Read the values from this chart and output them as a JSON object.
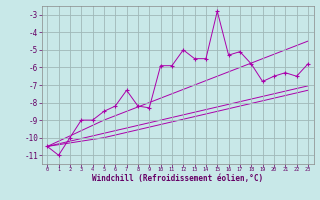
{
  "xlabel": "Windchill (Refroidissement éolien,°C)",
  "x": [
    0,
    1,
    2,
    3,
    4,
    5,
    6,
    7,
    8,
    9,
    10,
    11,
    12,
    13,
    14,
    15,
    16,
    17,
    18,
    19,
    20,
    21,
    22,
    23
  ],
  "y_main": [
    -10.5,
    -11.0,
    -10.0,
    -9.0,
    -9.0,
    -8.5,
    -8.2,
    -7.3,
    -8.2,
    -8.3,
    -5.9,
    -5.9,
    -5.0,
    -5.5,
    -5.5,
    -2.8,
    -5.3,
    -5.1,
    -5.8,
    -6.8,
    -6.5,
    -6.3,
    -6.5,
    -5.8
  ],
  "y_line1": [
    -10.5,
    -10.35,
    -10.2,
    -10.05,
    -9.9,
    -9.75,
    -9.6,
    -9.45,
    -9.3,
    -9.15,
    -9.0,
    -8.85,
    -8.7,
    -8.55,
    -8.4,
    -8.25,
    -8.1,
    -7.95,
    -7.8,
    -7.65,
    -7.5,
    -7.35,
    -7.2,
    -7.05
  ],
  "y_line2": [
    -10.5,
    -10.2,
    -9.9,
    -9.6,
    -9.3,
    -9.0,
    -8.75,
    -8.5,
    -8.25,
    -8.0,
    -7.75,
    -7.5,
    -7.25,
    -7.0,
    -6.75,
    -6.5,
    -6.25,
    -6.0,
    -5.75,
    -5.5,
    -5.25,
    -5.0,
    -4.75,
    -4.5
  ],
  "y_line3": [
    -10.5,
    -10.4,
    -10.3,
    -10.2,
    -10.1,
    -10.0,
    -9.85,
    -9.7,
    -9.55,
    -9.4,
    -9.25,
    -9.1,
    -8.95,
    -8.8,
    -8.65,
    -8.5,
    -8.35,
    -8.2,
    -8.05,
    -7.9,
    -7.75,
    -7.6,
    -7.45,
    -7.3
  ],
  "line_color": "#aa00aa",
  "bg_color": "#c8e8e8",
  "grid_color": "#a0b8b8",
  "ylim": [
    -11.5,
    -2.5
  ],
  "xlim": [
    -0.5,
    23.5
  ],
  "yticks": [
    -11,
    -10,
    -9,
    -8,
    -7,
    -6,
    -5,
    -4,
    -3
  ],
  "xticks": [
    0,
    1,
    2,
    3,
    4,
    5,
    6,
    7,
    8,
    9,
    10,
    11,
    12,
    13,
    14,
    15,
    16,
    17,
    18,
    19,
    20,
    21,
    22,
    23
  ]
}
